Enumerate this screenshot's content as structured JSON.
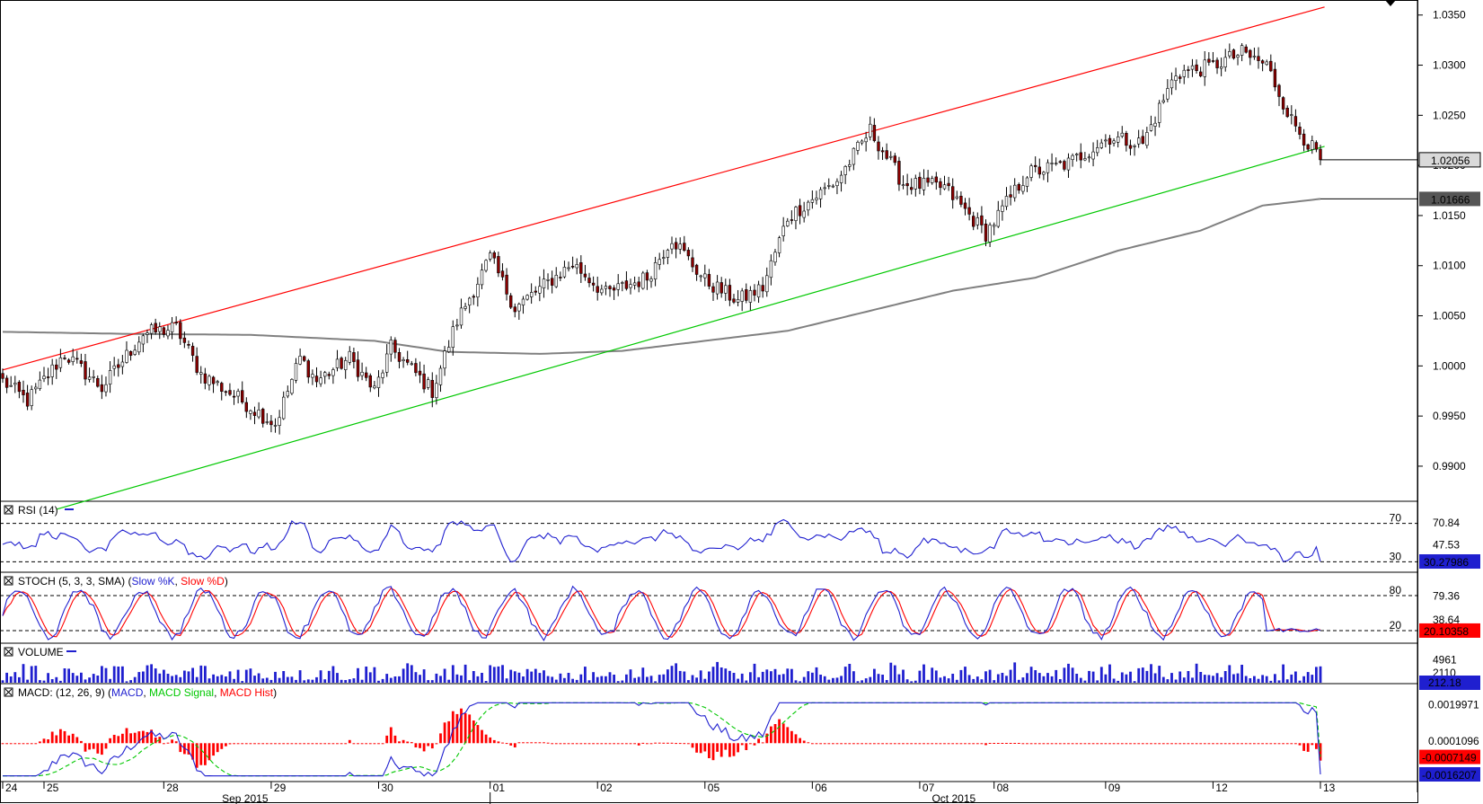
{
  "colors": {
    "up_candle": "#ffffff",
    "down_candle": "#8b0000",
    "wick": "#000000",
    "upper_channel": "#ff0000",
    "lower_channel": "#00c800",
    "moving_average": "#808080",
    "rsi_line": "#1f1fcf",
    "stoch_k": "#1f1fcf",
    "stoch_d": "#ff0000",
    "volume": "#1f1fcf",
    "macd_line": "#1f1fcf",
    "macd_signal": "#00c800",
    "macd_hist": "#ff0000",
    "last_price_box": "#d9d9d9",
    "ma_value_box": "#555555",
    "indicator_value_box": "#1f1fcf"
  },
  "chart_data": [
    {
      "type": "candlestick",
      "title": "",
      "ylim": [
        0.9865,
        1.0365
      ],
      "y_ticks": [
        "1.0350",
        "1.0300",
        "1.0250",
        "1.0200",
        "1.0150",
        "1.0100",
        "1.0050",
        "1.0000",
        "0.9950",
        "0.9900"
      ],
      "last_price_label": "1.02056",
      "last_price": 1.02056,
      "ma_label": "1.01666",
      "ma_value": 1.01666,
      "x_labels": [
        "24",
        "25",
        "28",
        "29",
        "30",
        "01",
        "02",
        "05",
        "06",
        "07",
        "08",
        "09",
        "12",
        "13"
      ],
      "month_labels": [
        "Sep 2015",
        "Oct 2015"
      ],
      "candle_count": 320,
      "close_anchors": [
        {
          "bar": 0,
          "close": 0.9985
        },
        {
          "bar": 6,
          "close": 0.9965
        },
        {
          "bar": 15,
          "close": 1.0012
        },
        {
          "bar": 24,
          "close": 0.9978
        },
        {
          "bar": 34,
          "close": 1.0032
        },
        {
          "bar": 42,
          "close": 1.0038
        },
        {
          "bar": 48,
          "close": 0.9992
        },
        {
          "bar": 58,
          "close": 0.9965
        },
        {
          "bar": 66,
          "close": 0.9942
        },
        {
          "bar": 72,
          "close": 1.0008
        },
        {
          "bar": 76,
          "close": 0.9985
        },
        {
          "bar": 84,
          "close": 1.0008
        },
        {
          "bar": 90,
          "close": 0.9975
        },
        {
          "bar": 94,
          "close": 1.0018
        },
        {
          "bar": 104,
          "close": 0.9975
        },
        {
          "bar": 110,
          "close": 1.0045
        },
        {
          "bar": 118,
          "close": 1.0108
        },
        {
          "bar": 124,
          "close": 1.0058
        },
        {
          "bar": 138,
          "close": 1.0102
        },
        {
          "bar": 146,
          "close": 1.0072
        },
        {
          "bar": 156,
          "close": 1.0088
        },
        {
          "bar": 162,
          "close": 1.0128
        },
        {
          "bar": 170,
          "close": 1.0085
        },
        {
          "bar": 178,
          "close": 1.0065
        },
        {
          "bar": 184,
          "close": 1.0078
        },
        {
          "bar": 190,
          "close": 1.0148
        },
        {
          "bar": 202,
          "close": 1.0185
        },
        {
          "bar": 210,
          "close": 1.0235
        },
        {
          "bar": 218,
          "close": 1.0182
        },
        {
          "bar": 228,
          "close": 1.0178
        },
        {
          "bar": 238,
          "close": 1.0132
        },
        {
          "bar": 248,
          "close": 1.0192
        },
        {
          "bar": 258,
          "close": 1.0202
        },
        {
          "bar": 268,
          "close": 1.0228
        },
        {
          "bar": 276,
          "close": 1.0222
        },
        {
          "bar": 284,
          "close": 1.0292
        },
        {
          "bar": 292,
          "close": 1.0298
        },
        {
          "bar": 300,
          "close": 1.0312
        },
        {
          "bar": 306,
          "close": 1.03
        },
        {
          "bar": 312,
          "close": 1.0245
        },
        {
          "bar": 319,
          "close": 1.02056
        }
      ],
      "upper_channel": {
        "start": {
          "bar": 0,
          "value": 0.9996
        },
        "end": {
          "bar": 320,
          "value": 1.0358
        }
      },
      "lower_channel": {
        "start": {
          "bar": 13,
          "value": 0.9857
        },
        "end": {
          "bar": 320,
          "value": 1.0219
        }
      },
      "moving_average": [
        {
          "bar": 0,
          "value": 1.0034
        },
        {
          "bar": 30,
          "value": 1.0032
        },
        {
          "bar": 60,
          "value": 1.0031
        },
        {
          "bar": 90,
          "value": 1.0025
        },
        {
          "bar": 108,
          "value": 1.0014
        },
        {
          "bar": 130,
          "value": 1.0012
        },
        {
          "bar": 150,
          "value": 1.0015
        },
        {
          "bar": 170,
          "value": 1.0025
        },
        {
          "bar": 190,
          "value": 1.0035
        },
        {
          "bar": 210,
          "value": 1.0055
        },
        {
          "bar": 230,
          "value": 1.0075
        },
        {
          "bar": 250,
          "value": 1.0088
        },
        {
          "bar": 270,
          "value": 1.0115
        },
        {
          "bar": 290,
          "value": 1.0135
        },
        {
          "bar": 305,
          "value": 1.016
        },
        {
          "bar": 319,
          "value": 1.01666
        }
      ]
    },
    {
      "type": "line",
      "name": "RSI",
      "header": "RSI (14)",
      "levels": [
        70,
        30
      ],
      "level_labels": [
        "70",
        "30"
      ],
      "y_ticks": [
        "70.84",
        "47.53"
      ],
      "current_label": "30.27986",
      "current_value": 30.28,
      "ylim": [
        20,
        80
      ]
    },
    {
      "type": "line",
      "name": "STOCH",
      "header_prefix": "STOCH (5, 3, 3, SMA) (",
      "header_k": "Slow %K",
      "header_sep": ", ",
      "header_d": "Slow %D",
      "header_suffix": ")",
      "levels": [
        80,
        20
      ],
      "level_labels": [
        "80",
        "20"
      ],
      "y_ticks": [
        "79.36",
        "38.64"
      ],
      "current_label": "20.10358",
      "current_value": 20.1,
      "ylim": [
        0,
        100
      ]
    },
    {
      "type": "bar",
      "name": "VOLUME",
      "header": "VOLUME",
      "y_ticks": [
        "4961",
        "2110"
      ],
      "current_label": "212.18",
      "ylim": [
        0,
        5800
      ]
    },
    {
      "type": "line",
      "name": "MACD",
      "header_prefix": "MACD: (12, 26, 9) (",
      "header_macd": "MACD",
      "header_sep1": ", ",
      "header_signal": "MACD Signal",
      "header_sep2": ", ",
      "header_hist": "MACD Hist",
      "header_suffix": ")",
      "y_ticks": [
        "0.0019971",
        "0.0001096"
      ],
      "signal_label": "-0.0007149",
      "macd_label": "-0.0016207",
      "ylim": [
        -0.0019,
        0.0023
      ]
    }
  ]
}
